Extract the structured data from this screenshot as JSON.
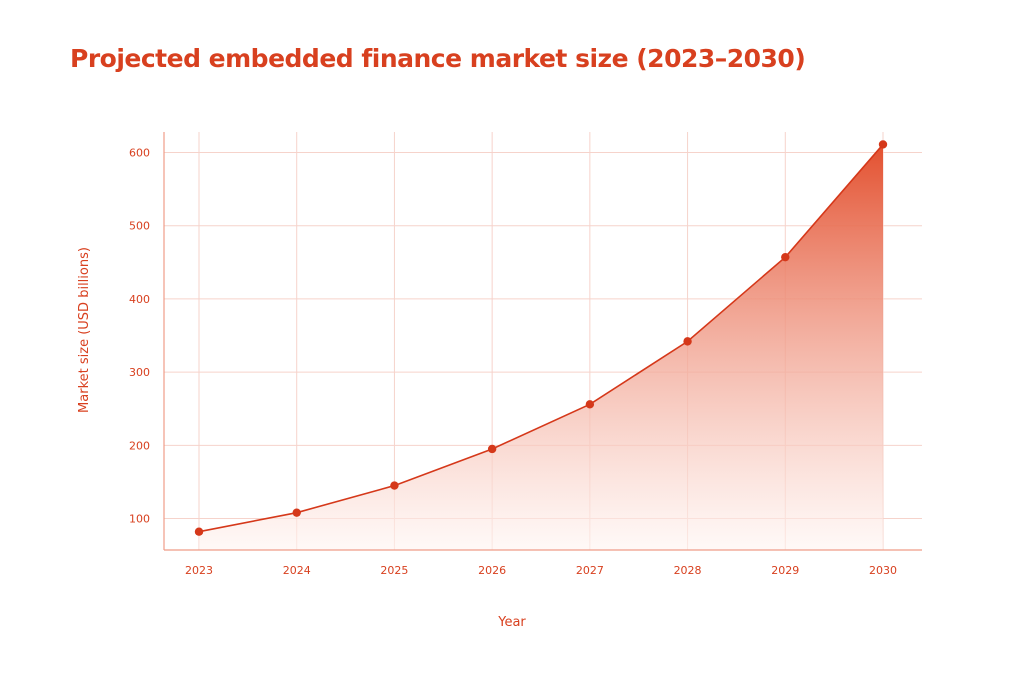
{
  "chart_data": {
    "type": "area",
    "title": "Projected embedded finance market size (2023–2030)",
    "xlabel": "Year",
    "ylabel": "Market size (USD billions)",
    "categories": [
      "2023",
      "2024",
      "2025",
      "2026",
      "2027",
      "2028",
      "2029",
      "2030"
    ],
    "values": [
      82,
      108,
      145,
      195,
      256,
      342,
      457,
      611
    ],
    "yticks": [
      100,
      200,
      300,
      400,
      500,
      600
    ],
    "ylim": [
      57,
      628
    ],
    "grid": true,
    "legend": "none",
    "colors": {
      "accent": "#d8401f",
      "line": "#d5381a",
      "grid": "#f6d3cb",
      "fill_top": "#e3502f",
      "fill_bottom": "#fff5f2"
    }
  }
}
